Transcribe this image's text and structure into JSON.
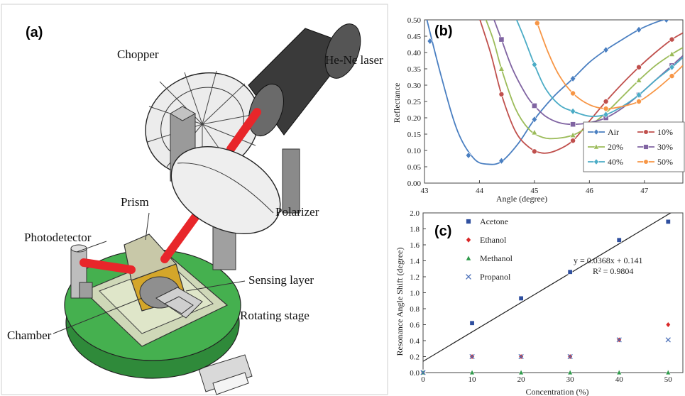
{
  "panel_a": {
    "letter": "(a)",
    "labels": {
      "chopper": "Chopper",
      "laser": "He-Ne laser",
      "prism": "Prism",
      "polarizer": "Polarizer",
      "photodetector": "Photodetector",
      "sensing_layer": "Sensing layer",
      "chamber": "Chamber",
      "rotating_stage": "Rotating stage"
    },
    "colors": {
      "beam": "#e8262a",
      "stage": "#3aa64a",
      "laser_body": "#3a3a3a",
      "prism": "#c9a227"
    }
  },
  "chart_data": [
    {
      "panel": "(b)",
      "type": "line",
      "xlabel": "Angle (degree)",
      "ylabel": "Reflectance",
      "xlim": [
        43,
        47.7
      ],
      "ylim": [
        0,
        0.5
      ],
      "xticks": [
        43,
        44,
        45,
        46,
        47
      ],
      "yticks": [
        0.0,
        0.05,
        0.1,
        0.15,
        0.2,
        0.25,
        0.3,
        0.35,
        0.4,
        0.45,
        0.5
      ],
      "ytick_labels": [
        "0.00",
        "0.05",
        "0.10",
        "0.15",
        "0.20",
        "0.25",
        "0.30",
        "0.35",
        "0.40",
        "0.45",
        "0.50"
      ],
      "legend_position": "bottom-right",
      "series": [
        {
          "name": "Air",
          "color": "#4a7fc1",
          "marker": "diamond",
          "points": [
            [
              43.1,
              0.435
            ],
            [
              43.8,
              0.085
            ],
            [
              44.4,
              0.068
            ],
            [
              45.0,
              0.195
            ],
            [
              45.7,
              0.32
            ],
            [
              46.3,
              0.408
            ],
            [
              46.9,
              0.47
            ],
            [
              47.4,
              0.5
            ]
          ],
          "curve": [
            [
              43.0,
              0.53
            ],
            [
              43.3,
              0.33
            ],
            [
              43.6,
              0.16
            ],
            [
              43.9,
              0.075
            ],
            [
              44.15,
              0.058
            ],
            [
              44.4,
              0.066
            ],
            [
              44.7,
              0.12
            ],
            [
              45.0,
              0.195
            ],
            [
              45.35,
              0.265
            ],
            [
              45.7,
              0.32
            ],
            [
              46.0,
              0.37
            ],
            [
              46.3,
              0.408
            ],
            [
              46.6,
              0.44
            ],
            [
              46.9,
              0.47
            ],
            [
              47.2,
              0.492
            ],
            [
              47.45,
              0.505
            ]
          ]
        },
        {
          "name": "10%",
          "color": "#c0504d",
          "marker": "circle",
          "points": [
            [
              44.4,
              0.272
            ],
            [
              45.0,
              0.097
            ],
            [
              45.7,
              0.13
            ],
            [
              46.3,
              0.25
            ],
            [
              46.9,
              0.355
            ],
            [
              47.5,
              0.44
            ]
          ],
          "curve": [
            [
              43.95,
              0.53
            ],
            [
              44.2,
              0.4
            ],
            [
              44.4,
              0.272
            ],
            [
              44.65,
              0.16
            ],
            [
              44.9,
              0.11
            ],
            [
              45.15,
              0.092
            ],
            [
              45.4,
              0.1
            ],
            [
              45.7,
              0.13
            ],
            [
              46.0,
              0.19
            ],
            [
              46.3,
              0.25
            ],
            [
              46.6,
              0.305
            ],
            [
              46.9,
              0.355
            ],
            [
              47.2,
              0.4
            ],
            [
              47.5,
              0.44
            ],
            [
              47.7,
              0.46
            ]
          ]
        },
        {
          "name": "20%",
          "color": "#9bbb59",
          "marker": "triangle",
          "points": [
            [
              44.4,
              0.35
            ],
            [
              45.0,
              0.155
            ],
            [
              45.7,
              0.147
            ],
            [
              46.3,
              0.215
            ],
            [
              46.9,
              0.315
            ],
            [
              47.5,
              0.395
            ]
          ],
          "curve": [
            [
              44.05,
              0.53
            ],
            [
              44.25,
              0.44
            ],
            [
              44.4,
              0.35
            ],
            [
              44.65,
              0.23
            ],
            [
              44.9,
              0.165
            ],
            [
              45.15,
              0.14
            ],
            [
              45.4,
              0.137
            ],
            [
              45.7,
              0.147
            ],
            [
              46.0,
              0.175
            ],
            [
              46.3,
              0.215
            ],
            [
              46.6,
              0.265
            ],
            [
              46.9,
              0.315
            ],
            [
              47.2,
              0.36
            ],
            [
              47.5,
              0.395
            ],
            [
              47.7,
              0.415
            ]
          ]
        },
        {
          "name": "30%",
          "color": "#8064a2",
          "marker": "square",
          "points": [
            [
              44.4,
              0.44
            ],
            [
              45.0,
              0.237
            ],
            [
              45.7,
              0.18
            ],
            [
              46.3,
              0.2
            ],
            [
              46.9,
              0.27
            ],
            [
              47.5,
              0.36
            ]
          ],
          "curve": [
            [
              44.2,
              0.53
            ],
            [
              44.4,
              0.44
            ],
            [
              44.6,
              0.35
            ],
            [
              44.85,
              0.27
            ],
            [
              45.0,
              0.237
            ],
            [
              45.2,
              0.205
            ],
            [
              45.45,
              0.185
            ],
            [
              45.7,
              0.18
            ],
            [
              46.0,
              0.185
            ],
            [
              46.3,
              0.2
            ],
            [
              46.6,
              0.23
            ],
            [
              46.9,
              0.27
            ],
            [
              47.2,
              0.315
            ],
            [
              47.5,
              0.36
            ],
            [
              47.7,
              0.39
            ]
          ]
        },
        {
          "name": "40%",
          "color": "#4bacc6",
          "marker": "diamond",
          "points": [
            [
              45.0,
              0.363
            ],
            [
              45.7,
              0.22
            ],
            [
              46.3,
              0.21
            ],
            [
              46.9,
              0.27
            ],
            [
              47.5,
              0.355
            ]
          ],
          "curve": [
            [
              44.6,
              0.53
            ],
            [
              44.8,
              0.45
            ],
            [
              45.0,
              0.363
            ],
            [
              45.2,
              0.29
            ],
            [
              45.45,
              0.24
            ],
            [
              45.7,
              0.22
            ],
            [
              46.0,
              0.205
            ],
            [
              46.3,
              0.21
            ],
            [
              46.6,
              0.235
            ],
            [
              46.9,
              0.27
            ],
            [
              47.2,
              0.315
            ],
            [
              47.5,
              0.355
            ],
            [
              47.7,
              0.385
            ]
          ]
        },
        {
          "name": "50%",
          "color": "#f79646",
          "marker": "circle",
          "points": [
            [
              45.05,
              0.49
            ],
            [
              45.7,
              0.275
            ],
            [
              46.3,
              0.228
            ],
            [
              46.9,
              0.25
            ],
            [
              47.5,
              0.328
            ]
          ],
          "curve": [
            [
              44.95,
              0.53
            ],
            [
              45.05,
              0.49
            ],
            [
              45.25,
              0.4
            ],
            [
              45.45,
              0.33
            ],
            [
              45.7,
              0.275
            ],
            [
              46.0,
              0.24
            ],
            [
              46.3,
              0.228
            ],
            [
              46.6,
              0.235
            ],
            [
              46.9,
              0.25
            ],
            [
              47.2,
              0.285
            ],
            [
              47.5,
              0.328
            ],
            [
              47.7,
              0.36
            ]
          ]
        }
      ]
    },
    {
      "panel": "(c)",
      "type": "scatter",
      "xlabel": "Concentration (%)",
      "ylabel": "Resonance Angle Shift (degree)",
      "xlim": [
        0,
        53
      ],
      "ylim": [
        0,
        2.0
      ],
      "xticks": [
        0,
        10,
        20,
        30,
        40,
        50
      ],
      "yticks": [
        0.0,
        0.2,
        0.4,
        0.6,
        0.8,
        1.0,
        1.2,
        1.4,
        1.6,
        1.8,
        2.0
      ],
      "ytick_labels": [
        "0.0",
        "0.2",
        "0.4",
        "0.6",
        "0.8",
        "1.0",
        "1.2",
        "1.4",
        "1.6",
        "1.8",
        "2.0"
      ],
      "legend_position": "top-left",
      "series": [
        {
          "name": "Acetone",
          "color": "#2f4f9f",
          "marker": "square",
          "x": [
            0,
            10,
            20,
            30,
            40,
            50
          ],
          "y": [
            0.0,
            0.62,
            0.93,
            1.26,
            1.66,
            1.89
          ]
        },
        {
          "name": "Ethanol",
          "color": "#d92727",
          "marker": "diamond",
          "x": [
            0,
            10,
            20,
            30,
            40,
            50
          ],
          "y": [
            0.0,
            0.2,
            0.2,
            0.2,
            0.41,
            0.6
          ]
        },
        {
          "name": "Methanol",
          "color": "#2e9a4a",
          "marker": "triangle",
          "x": [
            0,
            10,
            20,
            30,
            40,
            50
          ],
          "y": [
            0.0,
            0.0,
            0.0,
            0.0,
            0.0,
            0.0
          ]
        },
        {
          "name": "Propanol",
          "color": "#4a6fb8",
          "marker": "x",
          "x": [
            0,
            10,
            20,
            30,
            40,
            50
          ],
          "y": [
            0.0,
            0.2,
            0.2,
            0.2,
            0.41,
            0.41
          ]
        }
      ],
      "fit_line": {
        "slope": 0.0368,
        "intercept": 0.141,
        "x_range": [
          0,
          53
        ],
        "color": "#222222"
      },
      "annotations": {
        "equation": "y = 0.0368x + 0.141",
        "r_squared": "R² = 0.9804"
      }
    }
  ]
}
